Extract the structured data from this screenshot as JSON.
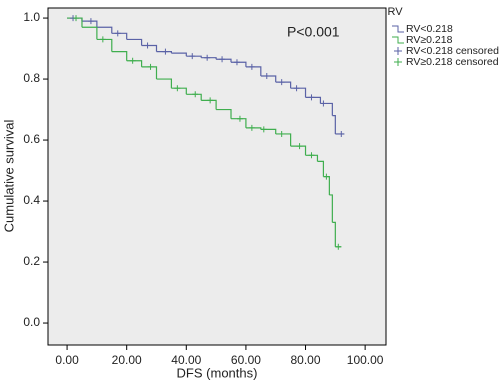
{
  "chart_data": {
    "type": "step",
    "annotation": "P<0.001",
    "x_label": "DFS (months)",
    "y_label": "Cumulative survival",
    "legend_title": "RV",
    "legend": "outside-right",
    "background": "#ececec",
    "xlim": [
      -6.4,
      107
    ],
    "ylim": [
      -0.072,
      1.033
    ],
    "xticks": [
      {
        "value": 0,
        "label": "0.00"
      },
      {
        "value": 20,
        "label": "20.00"
      },
      {
        "value": 40,
        "label": "40.00"
      },
      {
        "value": 60,
        "label": "60.00"
      },
      {
        "value": 80,
        "label": "80.00"
      },
      {
        "value": 100,
        "label": "100.00"
      }
    ],
    "yticks": [
      {
        "value": 0,
        "label": "0.0"
      },
      0.2,
      0.4,
      0.6,
      0.8,
      {
        "value": 1,
        "label": "1.0"
      }
    ],
    "series": [
      {
        "name": "RV<0.218",
        "color": "#5a62a6",
        "kind": "step",
        "x": [
          0,
          5,
          10,
          15,
          20,
          25,
          30,
          35,
          40,
          45,
          50,
          55,
          60,
          65,
          70,
          75,
          80,
          85,
          89,
          90,
          93
        ],
        "values": [
          1.0,
          0.99,
          0.97,
          0.95,
          0.93,
          0.91,
          0.89,
          0.885,
          0.875,
          0.87,
          0.865,
          0.855,
          0.84,
          0.81,
          0.79,
          0.77,
          0.74,
          0.72,
          0.68,
          0.62,
          0.62
        ]
      },
      {
        "name": "RV≥0.218",
        "color": "#3fae4e",
        "kind": "step",
        "x": [
          0,
          5,
          10,
          15,
          20,
          25,
          30,
          35,
          40,
          45,
          50,
          55,
          60,
          65,
          70,
          75,
          80,
          84,
          86,
          88,
          89,
          90,
          92
        ],
        "values": [
          1.0,
          0.97,
          0.93,
          0.89,
          0.86,
          0.84,
          0.8,
          0.77,
          0.75,
          0.73,
          0.7,
          0.67,
          0.64,
          0.635,
          0.62,
          0.58,
          0.55,
          0.53,
          0.48,
          0.42,
          0.33,
          0.25,
          0.25
        ]
      },
      {
        "name": "RV<0.218 censored",
        "color": "#5a62a6",
        "kind": "censored",
        "x": [
          2,
          8,
          17,
          27,
          33,
          42,
          47,
          52,
          57,
          62,
          67,
          72,
          77,
          82,
          86,
          92
        ],
        "values": [
          1.0,
          0.99,
          0.95,
          0.91,
          0.89,
          0.875,
          0.87,
          0.865,
          0.855,
          0.84,
          0.81,
          0.79,
          0.77,
          0.74,
          0.72,
          0.62
        ]
      },
      {
        "name": "RV≥0.218 censored",
        "color": "#3fae4e",
        "kind": "censored",
        "x": [
          3,
          12,
          22,
          28,
          37,
          43,
          48,
          58,
          62,
          66,
          72,
          78,
          82,
          87,
          91
        ],
        "values": [
          1.0,
          0.93,
          0.86,
          0.84,
          0.77,
          0.75,
          0.73,
          0.67,
          0.64,
          0.635,
          0.62,
          0.58,
          0.55,
          0.48,
          0.25
        ]
      }
    ]
  }
}
